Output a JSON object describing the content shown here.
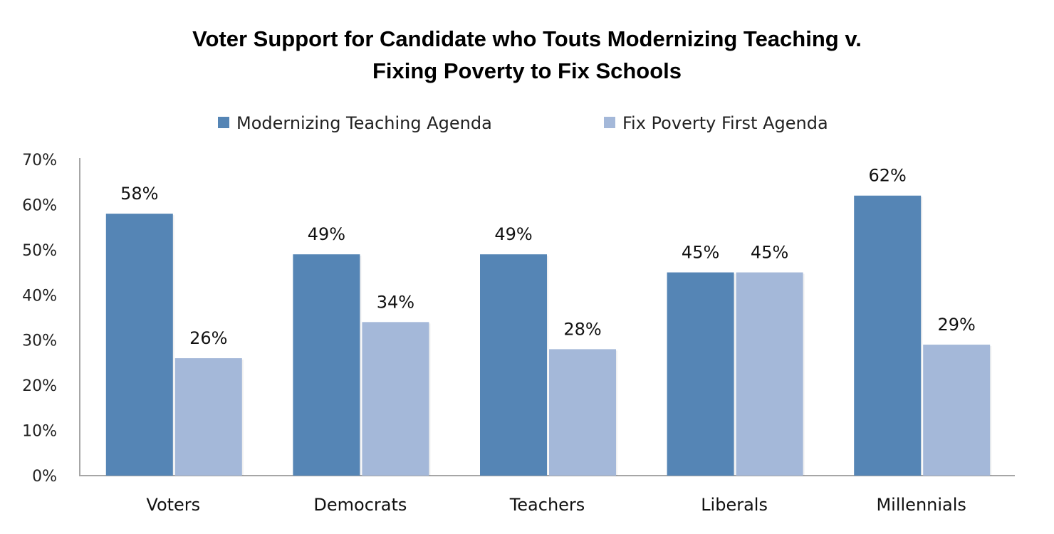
{
  "chart_data": {
    "type": "bar",
    "title_lines": [
      "Voter Support for Candidate who Touts Modernizing Teaching v.",
      "Fixing Poverty to Fix Schools"
    ],
    "categories": [
      "Voters",
      "Democrats",
      "Teachers",
      "Liberals",
      "Millennials"
    ],
    "series": [
      {
        "name": "Modernizing Teaching Agenda",
        "values": [
          58,
          49,
          49,
          45,
          62
        ],
        "labels": [
          "58%",
          "49%",
          "49%",
          "45%",
          "62%"
        ],
        "color": "#5585b5"
      },
      {
        "name": "Fix Poverty First Agenda",
        "values": [
          26,
          34,
          28,
          45,
          29
        ],
        "labels": [
          "26%",
          "34%",
          "28%",
          "45%",
          "29%"
        ],
        "color": "#a4b8d9"
      }
    ],
    "yticks": [
      "0%",
      "10%",
      "20%",
      "30%",
      "40%",
      "50%",
      "60%",
      "70%"
    ],
    "ylim": [
      0,
      70
    ],
    "xlabel": "",
    "ylabel": "",
    "grid": false,
    "legend_position": "top"
  }
}
